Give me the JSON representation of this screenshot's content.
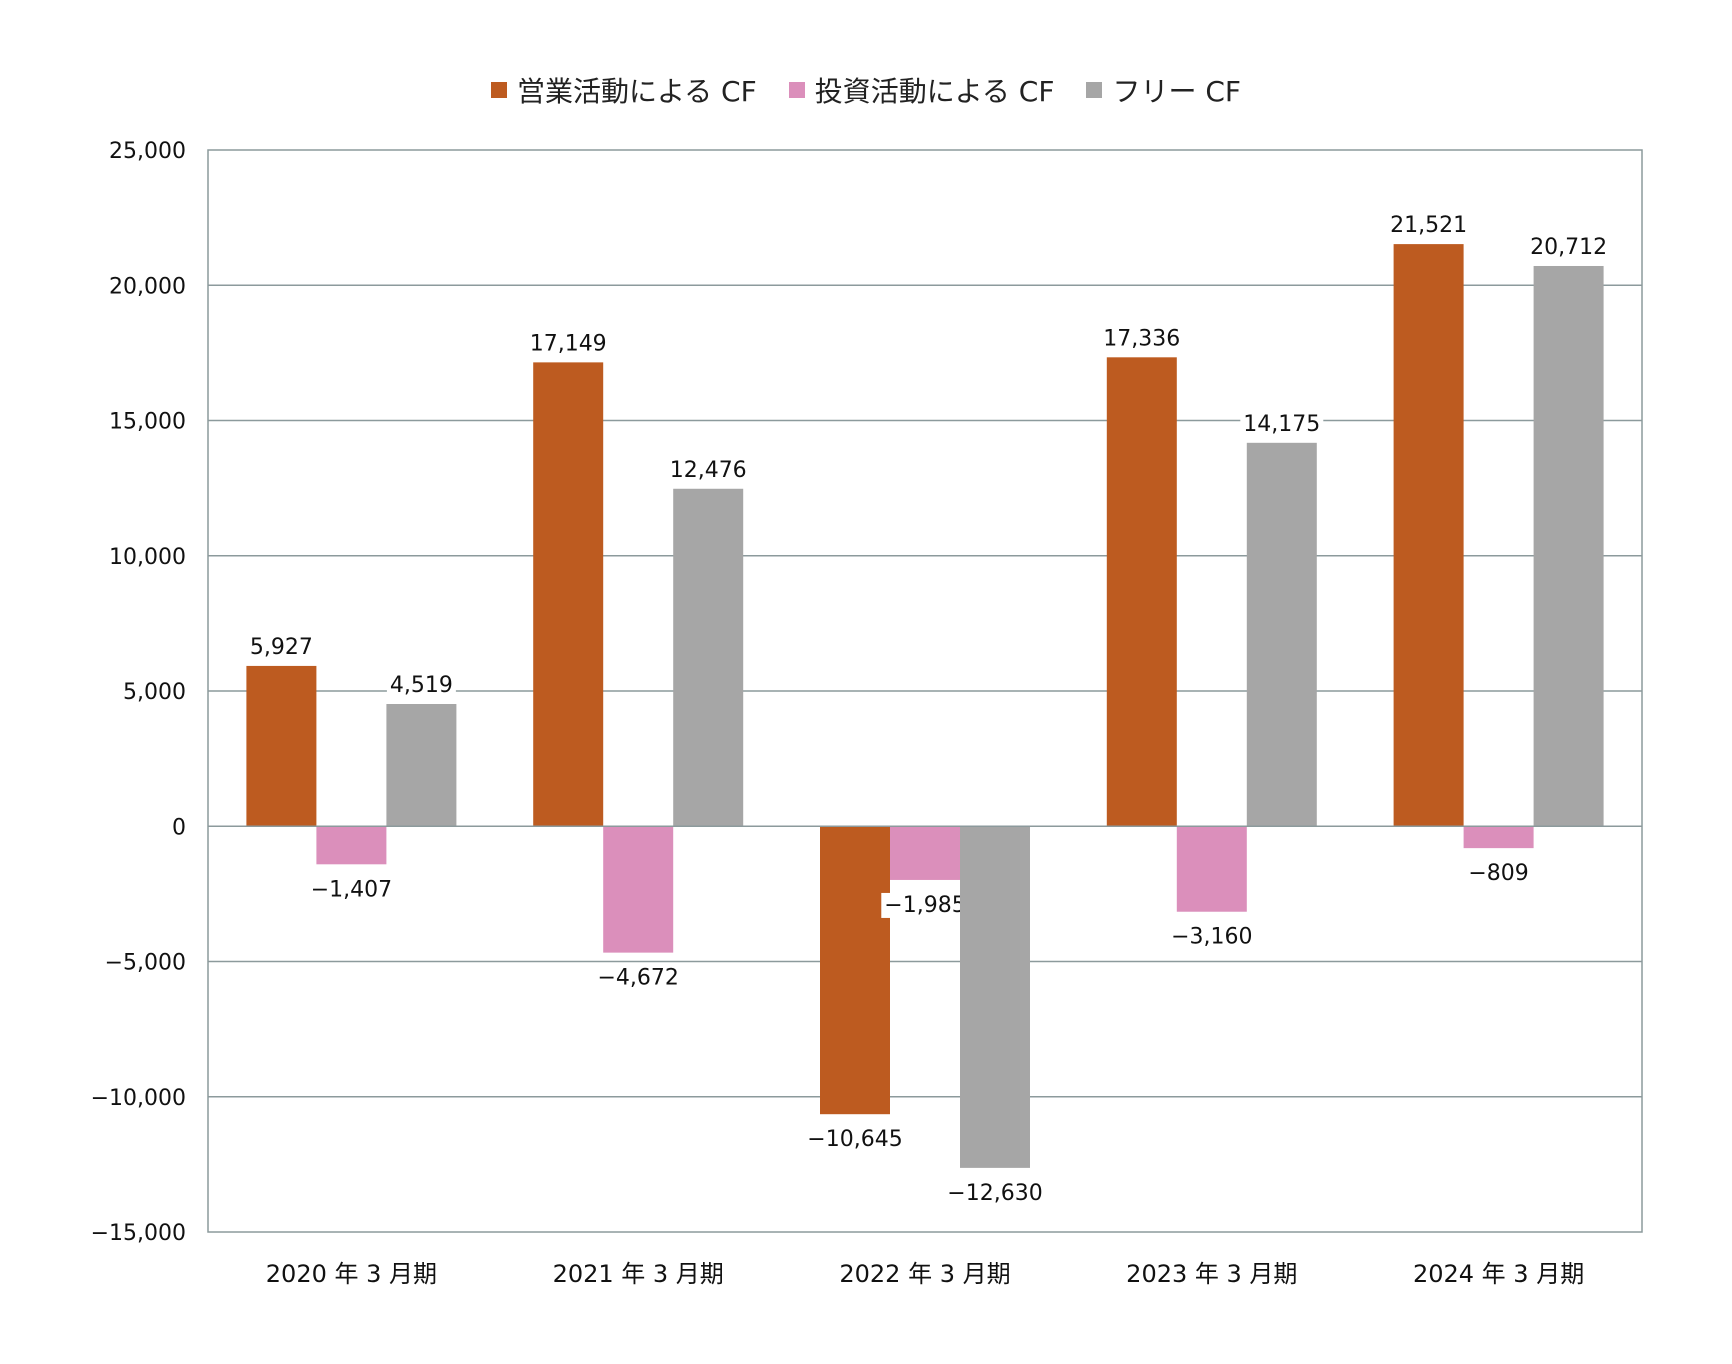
{
  "chart_data": {
    "type": "bar",
    "categories": [
      "2020 年 3 月期",
      "2021 年 3 月期",
      "2022 年 3 月期",
      "2023 年 3 月期",
      "2024 年 3 月期"
    ],
    "series": [
      {
        "name": "営業活動による CF",
        "color": "#bd5b20",
        "values": [
          5927,
          17149,
          -10645,
          17336,
          21521
        ],
        "labels": [
          "5,927",
          "17,149",
          "−10,645",
          "17,336",
          "21,521"
        ]
      },
      {
        "name": "投資活動による CF",
        "color": "#db8fbb",
        "values": [
          -1407,
          -4672,
          -1985,
          -3160,
          -809
        ],
        "labels": [
          "−1,407",
          "−4,672",
          "−1,985",
          "−3,160",
          "−809"
        ]
      },
      {
        "name": "フリー CF",
        "color": "#a6a6a6",
        "values": [
          4519,
          12476,
          -12630,
          14175,
          20712
        ],
        "labels": [
          "4,519",
          "12,476",
          "−12,630",
          "14,175",
          "20,712"
        ]
      }
    ],
    "ylim": [
      -15000,
      25000
    ],
    "yticks": [
      25000,
      20000,
      15000,
      10000,
      5000,
      0,
      -5000,
      -10000,
      -15000
    ],
    "ytick_labels": [
      "25,000",
      "20,000",
      "15,000",
      "10,000",
      "5,000",
      "0",
      "−5,000",
      "−10,000",
      "−15,000"
    ],
    "grid": true,
    "legend_position": "top"
  }
}
